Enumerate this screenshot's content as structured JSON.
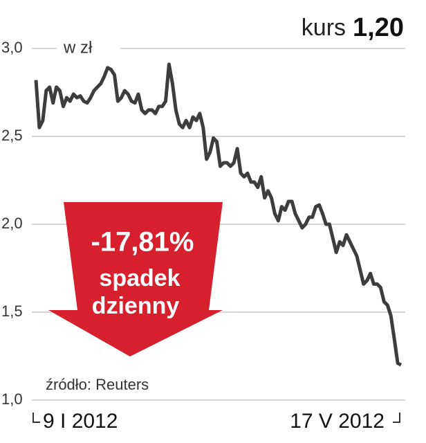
{
  "chart_data": {
    "type": "line",
    "header_label": "kurs",
    "header_value": "1,20",
    "y_label": "w zł",
    "annotation": [
      "-17,81%",
      "spadek",
      "dzienny"
    ],
    "source": "źródło: Reuters",
    "categories": [
      "9 I 2012",
      null,
      null,
      null,
      null,
      null,
      null,
      null,
      null,
      null,
      null,
      null,
      null,
      null,
      null,
      null,
      null,
      null,
      null,
      null,
      null,
      null,
      null,
      null,
      null,
      null,
      null,
      null,
      null,
      null,
      null,
      null,
      null,
      null,
      null,
      null,
      null,
      null,
      null,
      null,
      null,
      null,
      null,
      null,
      null,
      null,
      null,
      null,
      null,
      null,
      null,
      null,
      null,
      null,
      null,
      null,
      null,
      null,
      null,
      null,
      null,
      null,
      null,
      null,
      null,
      null,
      null,
      null,
      null,
      null,
      null,
      null,
      null,
      null,
      null,
      null,
      null,
      null,
      null,
      null,
      null,
      null,
      null,
      null,
      null,
      null,
      null,
      null,
      null,
      null,
      null,
      null,
      null,
      null,
      null,
      null,
      null,
      null,
      null,
      null,
      null,
      null,
      null,
      null,
      null,
      null,
      null,
      "17 V 2012"
    ],
    "values": [
      2.82,
      2.55,
      2.59,
      2.76,
      2.78,
      2.69,
      2.78,
      2.76,
      2.67,
      2.72,
      2.7,
      2.74,
      2.72,
      2.73,
      2.7,
      2.69,
      2.72,
      2.76,
      2.78,
      2.8,
      2.84,
      2.89,
      2.88,
      2.85,
      2.7,
      2.72,
      2.76,
      2.74,
      2.7,
      2.69,
      2.74,
      2.65,
      2.63,
      2.65,
      2.65,
      2.63,
      2.67,
      2.67,
      2.7,
      2.91,
      2.8,
      2.65,
      2.57,
      2.55,
      2.59,
      2.55,
      2.61,
      2.59,
      2.63,
      2.55,
      2.37,
      2.41,
      2.49,
      2.47,
      2.33,
      2.35,
      2.35,
      2.33,
      2.35,
      2.43,
      2.29,
      2.27,
      2.29,
      2.24,
      2.24,
      2.21,
      2.27,
      2.15,
      2.19,
      2.15,
      2.06,
      2.02,
      2.1,
      2.08,
      2.13,
      2.13,
      2.06,
      2.02,
      1.98,
      2.0,
      2.04,
      2.04,
      2.1,
      2.11,
      2.06,
      2.0,
      2.0,
      1.92,
      1.84,
      1.9,
      1.88,
      1.94,
      1.9,
      1.86,
      1.82,
      1.74,
      1.66,
      1.68,
      1.72,
      1.66,
      1.66,
      1.64,
      1.56,
      1.54,
      1.48,
      1.35,
      1.21,
      1.2
    ],
    "color": "#3d3d3d",
    "ylim": [
      1,
      3
    ],
    "yticks": [
      {
        "value": 1,
        "label": "1,0"
      },
      {
        "value": 1.5,
        "label": "1,5"
      },
      {
        "value": 2,
        "label": "2,0"
      },
      {
        "value": 2.5,
        "label": "2,5"
      },
      {
        "value": 3,
        "label": "3,0"
      }
    ],
    "grid": true
  }
}
